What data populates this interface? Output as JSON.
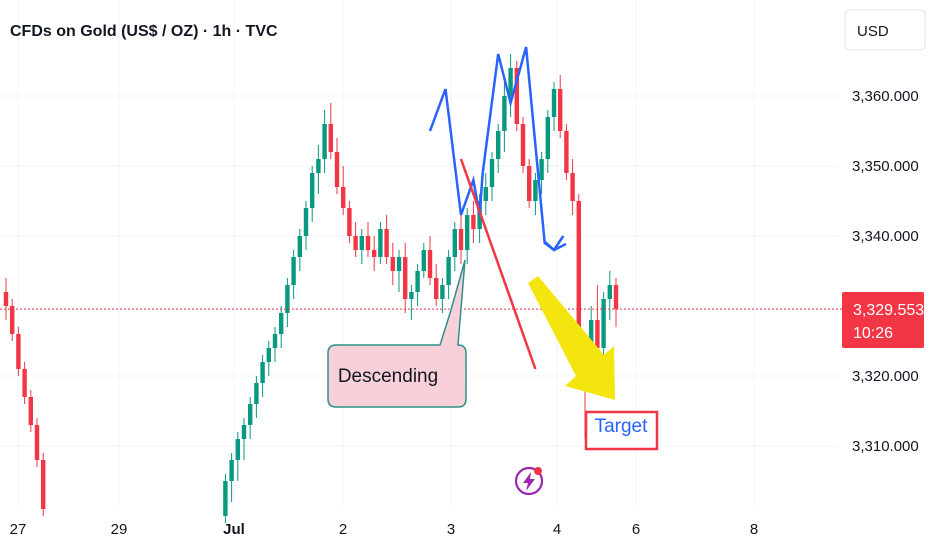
{
  "header": {
    "title": "CFDs on Gold (US$ / OZ) · 1h · TVC"
  },
  "currency_button": "USD",
  "price_badge": {
    "price": "3,329.553",
    "countdown": "10:26",
    "color": "#f23645"
  },
  "annotations": {
    "descending_label": "Descending",
    "target_label": "Target"
  },
  "colors": {
    "up": "#089981",
    "down": "#f23645",
    "pattern": "#2962ff",
    "trendline": "#f23645",
    "arrow": "#f5e50f",
    "callout_fill": "#f8d0da",
    "callout_border": "#2f8f8a",
    "target_border": "#f23645",
    "target_text": "#2962ff"
  },
  "icons": {
    "flash": "lightning-icon"
  },
  "chart_data": {
    "type": "candlestick",
    "title": "CFDs on Gold (US$ / OZ) · 1h · TVC",
    "ylim": [
      3302,
      3374
    ],
    "yticks": [
      {
        "value": 3360,
        "label": "3,360.000"
      },
      {
        "value": 3350,
        "label": "3,350.000"
      },
      {
        "value": 3340,
        "label": "3,340.000"
      },
      {
        "value": 3320,
        "label": "3,320.000"
      },
      {
        "value": 3310,
        "label": "3,310.000"
      }
    ],
    "xticks": [
      "27",
      "29",
      "Jul",
      "2",
      "3",
      "4",
      "6",
      "8"
    ],
    "last_price": 3329.553,
    "candles": [
      [
        3332,
        3334,
        3328,
        3330
      ],
      [
        3330,
        3331,
        3325,
        3326
      ],
      [
        3326,
        3327,
        3320,
        3321
      ],
      [
        3321,
        3322,
        3316,
        3317
      ],
      [
        3317,
        3318,
        3312,
        3313
      ],
      [
        3313,
        3314,
        3307,
        3308
      ],
      [
        3308,
        3309,
        3300,
        3301
      ],
      [
        3300,
        3306,
        3299,
        3305
      ],
      [
        3305,
        3309,
        3302,
        3308
      ],
      [
        3308,
        3312,
        3305,
        3311
      ],
      [
        3311,
        3314,
        3308,
        3313
      ],
      [
        3313,
        3317,
        3311,
        3316
      ],
      [
        3316,
        3320,
        3314,
        3319
      ],
      [
        3319,
        3323,
        3317,
        3322
      ],
      [
        3322,
        3325,
        3320,
        3324
      ],
      [
        3324,
        3327,
        3322,
        3326
      ],
      [
        3326,
        3330,
        3324,
        3329
      ],
      [
        3329,
        3334,
        3327,
        3333
      ],
      [
        3333,
        3338,
        3331,
        3337
      ],
      [
        3337,
        3341,
        3335,
        3340
      ],
      [
        3340,
        3345,
        3338,
        3344
      ],
      [
        3344,
        3350,
        3342,
        3349
      ],
      [
        3349,
        3353,
        3346,
        3351
      ],
      [
        3351,
        3358,
        3349,
        3356
      ],
      [
        3356,
        3359,
        3351,
        3352
      ],
      [
        3352,
        3354,
        3346,
        3347
      ],
      [
        3347,
        3350,
        3343,
        3344
      ],
      [
        3344,
        3345,
        3339,
        3340
      ],
      [
        3340,
        3342,
        3337,
        3338
      ],
      [
        3338,
        3341,
        3336,
        3340
      ],
      [
        3340,
        3342,
        3337,
        3338
      ],
      [
        3338,
        3340,
        3335,
        3337
      ],
      [
        3337,
        3342,
        3336,
        3341
      ],
      [
        3341,
        3343,
        3336,
        3337
      ],
      [
        3337,
        3339,
        3333,
        3335
      ],
      [
        3335,
        3338,
        3332,
        3337
      ],
      [
        3337,
        3339,
        3329,
        3331
      ],
      [
        3331,
        3333,
        3328,
        3332
      ],
      [
        3332,
        3336,
        3330,
        3335
      ],
      [
        3335,
        3339,
        3334,
        3338
      ],
      [
        3338,
        3340,
        3333,
        3334
      ],
      [
        3334,
        3336,
        3330,
        3331
      ],
      [
        3331,
        3334,
        3329,
        3333
      ],
      [
        3333,
        3338,
        3331,
        3337
      ],
      [
        3337,
        3342,
        3335,
        3341
      ],
      [
        3341,
        3343,
        3336,
        3338
      ],
      [
        3338,
        3344,
        3336,
        3343
      ],
      [
        3343,
        3345,
        3339,
        3341
      ],
      [
        3341,
        3346,
        3339,
        3345
      ],
      [
        3345,
        3349,
        3343,
        3347
      ],
      [
        3347,
        3352,
        3345,
        3351
      ],
      [
        3351,
        3356,
        3349,
        3355
      ],
      [
        3355,
        3362,
        3352,
        3360
      ],
      [
        3360,
        3366,
        3357,
        3364
      ],
      [
        3364,
        3365,
        3355,
        3356
      ],
      [
        3356,
        3357,
        3349,
        3350
      ],
      [
        3350,
        3351,
        3344,
        3345
      ],
      [
        3345,
        3349,
        3343,
        3348
      ],
      [
        3348,
        3352,
        3346,
        3351
      ],
      [
        3351,
        3358,
        3349,
        3357
      ],
      [
        3357,
        3362,
        3355,
        3361
      ],
      [
        3361,
        3363,
        3354,
        3355
      ],
      [
        3355,
        3356,
        3348,
        3349
      ],
      [
        3349,
        3351,
        3343,
        3345
      ],
      [
        3345,
        3346,
        3322,
        3324
      ],
      [
        3324,
        3326,
        3311,
        3322
      ],
      [
        3322,
        3330,
        3320,
        3328
      ],
      [
        3328,
        3333,
        3322,
        3324
      ],
      [
        3324,
        3332,
        3322,
        3331
      ],
      [
        3331,
        3335,
        3328,
        3333
      ],
      [
        3333,
        3334,
        3327,
        3329.553
      ]
    ],
    "pattern_line": [
      [
        -8,
        3355
      ],
      [
        -5.5,
        3361
      ],
      [
        -3,
        3343
      ],
      [
        -1,
        3348
      ],
      [
        0,
        3343
      ],
      [
        0.5,
        3349
      ],
      [
        3,
        3366
      ],
      [
        5,
        3359
      ],
      [
        7.5,
        3367
      ],
      [
        10.5,
        3339
      ],
      [
        12,
        3338
      ],
      [
        13.5,
        3340
      ]
    ],
    "descending_line": [
      [
        -3,
        3351
      ],
      [
        9,
        3321
      ]
    ]
  }
}
